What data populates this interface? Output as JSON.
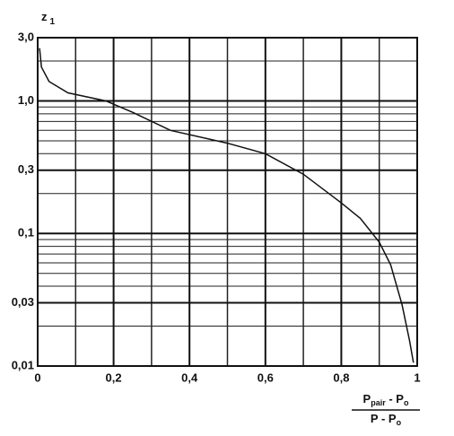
{
  "chart_data": {
    "type": "line",
    "y_label": {
      "base": "z",
      "sub": "1"
    },
    "x_label": {
      "numerator": [
        "P",
        "pair",
        " - P",
        "o"
      ],
      "denominator": [
        "P - P",
        "o"
      ]
    },
    "log_y": true,
    "grid": true,
    "color": "#111111",
    "x": [
      0.005,
      0.01,
      0.03,
      0.08,
      0.18,
      0.25,
      0.35,
      0.5,
      0.6,
      0.7,
      0.8,
      0.85,
      0.9,
      0.93,
      0.96,
      0.98,
      0.99
    ],
    "values": [
      2.5,
      1.8,
      1.4,
      1.15,
      1.0,
      0.82,
      0.6,
      0.48,
      0.4,
      0.28,
      0.17,
      0.13,
      0.086,
      0.058,
      0.029,
      0.0155,
      0.0106
    ],
    "xlim": [
      0,
      1
    ],
    "ylim": [
      0.01,
      3
    ],
    "xticks": [
      0,
      {
        "value": 0.2,
        "label": "0,2"
      },
      {
        "value": 0.4,
        "label": "0,4"
      },
      {
        "value": 0.6,
        "label": "0,6"
      },
      {
        "value": 0.8,
        "label": "0,8"
      },
      1
    ],
    "yticks": [
      {
        "value": 0.01,
        "label": "0,01"
      },
      {
        "value": 0.03,
        "label": "0,03"
      },
      {
        "value": 0.1,
        "label": "0,1"
      },
      {
        "value": 0.3,
        "label": "0,3"
      },
      {
        "value": 1,
        "label": "1,0"
      },
      {
        "value": 3,
        "label": "3,0"
      }
    ],
    "xminor": [
      0.1,
      0.3,
      0.5,
      0.7,
      0.9
    ],
    "yminor": [
      0.02,
      0.04,
      0.05,
      0.06,
      0.07,
      0.08,
      0.09,
      0.2,
      0.4,
      0.5,
      0.6,
      0.7,
      0.8,
      0.9,
      2
    ]
  }
}
